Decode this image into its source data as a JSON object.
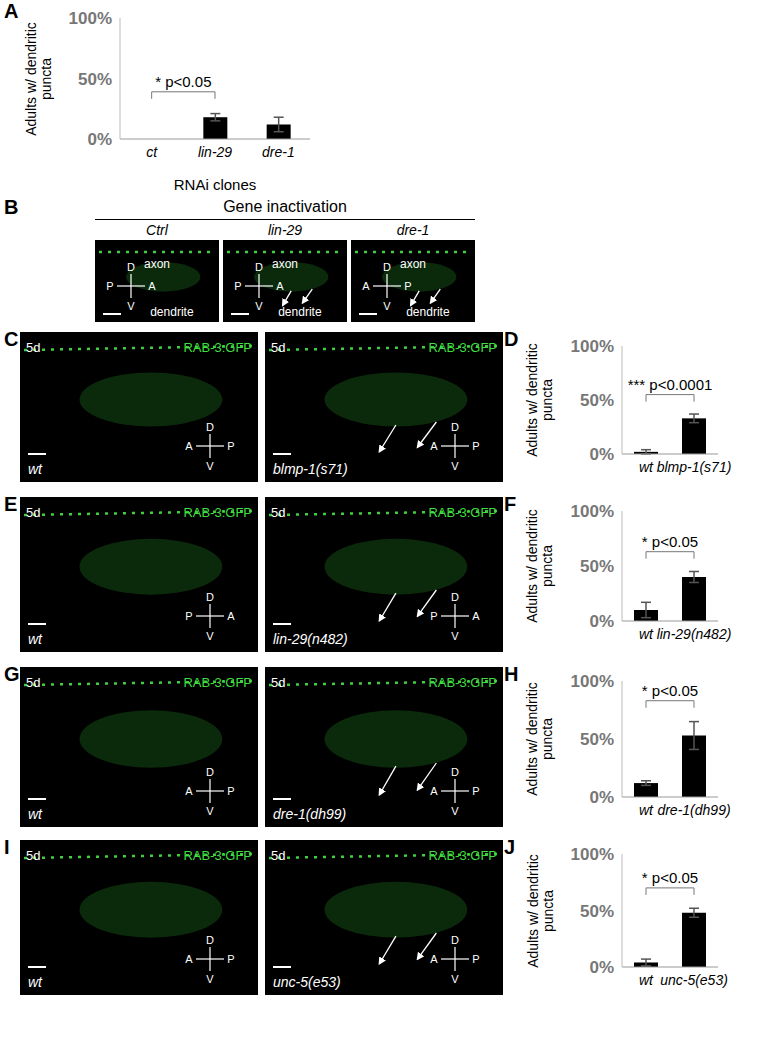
{
  "chart_data": [
    {
      "panel": "A",
      "type": "bar",
      "y_label": "Adults w/ dendritic puncta",
      "x_label": "RNAi clones",
      "categories": [
        "ct",
        "lin-29",
        "dre-1"
      ],
      "values": [
        0,
        18,
        12
      ],
      "errors": [
        0,
        3,
        6
      ],
      "color": "#000000",
      "ylim": [
        0,
        100
      ],
      "yticks": [
        {
          "value": 0,
          "label": "0%"
        },
        {
          "value": 50,
          "label": "50%"
        },
        {
          "value": 100,
          "label": "100%"
        }
      ],
      "annotations": [
        {
          "text": "* p<0.05",
          "between": [
            "ct",
            "lin-29"
          ]
        }
      ]
    },
    {
      "panel": "D",
      "type": "bar",
      "y_label": "Adults w/ dendritic puncta",
      "categories": [
        "wt",
        "blmp-1(s71)"
      ],
      "values": [
        2,
        33
      ],
      "errors": [
        2,
        4
      ],
      "color": "#000000",
      "ylim": [
        0,
        100
      ],
      "yticks": [
        {
          "value": 0,
          "label": "0%"
        },
        {
          "value": 50,
          "label": "50%"
        },
        {
          "value": 100,
          "label": "100%"
        }
      ],
      "annotations": [
        {
          "text": "*** p<0.0001",
          "between": [
            "wt",
            "blmp-1(s71)"
          ]
        }
      ]
    },
    {
      "panel": "F",
      "type": "bar",
      "y_label": "Adults w/ dendritic puncta",
      "categories": [
        "wt",
        "lin-29(n482)"
      ],
      "values": [
        10,
        40
      ],
      "errors": [
        7,
        5
      ],
      "color": "#000000",
      "ylim": [
        0,
        100
      ],
      "yticks": [
        {
          "value": 0,
          "label": "0%"
        },
        {
          "value": 50,
          "label": "50%"
        },
        {
          "value": 100,
          "label": "100%"
        }
      ],
      "annotations": [
        {
          "text": "* p<0.05",
          "between": [
            "wt",
            "lin-29(n482)"
          ]
        }
      ]
    },
    {
      "panel": "H",
      "type": "bar",
      "y_label": "Adults w/ dendritic puncta",
      "categories": [
        "wt",
        "dre-1(dh99)"
      ],
      "values": [
        12,
        53
      ],
      "errors": [
        2,
        12
      ],
      "color": "#000000",
      "ylim": [
        0,
        100
      ],
      "yticks": [
        {
          "value": 0,
          "label": "0%"
        },
        {
          "value": 50,
          "label": "50%"
        },
        {
          "value": 100,
          "label": "100%"
        }
      ],
      "annotations": [
        {
          "text": "* p<0.05",
          "between": [
            "wt",
            "dre-1(dh99)"
          ]
        }
      ]
    },
    {
      "panel": "J",
      "type": "bar",
      "y_label": "Adults w/ dendritic puncta",
      "categories": [
        "wt",
        "unc-5(e53)"
      ],
      "values": [
        4,
        48
      ],
      "errors": [
        3,
        4
      ],
      "color": "#000000",
      "ylim": [
        0,
        100
      ],
      "yticks": [
        {
          "value": 0,
          "label": "0%"
        },
        {
          "value": 50,
          "label": "50%"
        },
        {
          "value": 100,
          "label": "100%"
        }
      ],
      "annotations": [
        {
          "text": "* p<0.05",
          "between": [
            "wt",
            "unc-5(e53)"
          ]
        }
      ]
    }
  ],
  "image_panels": [
    {
      "panel": "B",
      "title": "Gene inactivation",
      "images": [
        {
          "label": "Ctrl",
          "upper_text": "axon",
          "lower_text": "dendrite",
          "compass": {
            "top": "D",
            "bottom": "V",
            "left": "P",
            "right": "A"
          }
        },
        {
          "label": "lin-29",
          "upper_text": "axon",
          "lower_text": "dendrite",
          "compass": {
            "top": "D",
            "bottom": "V",
            "left": "P",
            "right": "A"
          }
        },
        {
          "label": "dre-1",
          "upper_text": "axon",
          "lower_text": "dendrite",
          "compass": {
            "top": "D",
            "bottom": "V",
            "left": "A",
            "right": "P"
          }
        }
      ]
    },
    {
      "panel": "C",
      "images": [
        {
          "age": "5d",
          "reporter": "RAB-3:GFP",
          "genotype": "wt",
          "compass": {
            "top": "D",
            "bottom": "V",
            "left": "A",
            "right": "P"
          }
        },
        {
          "age": "5d",
          "reporter": "RAB-3:GFP",
          "genotype": "blmp-1(s71)",
          "compass": {
            "top": "D",
            "bottom": "V",
            "left": "A",
            "right": "P"
          }
        }
      ]
    },
    {
      "panel": "E",
      "images": [
        {
          "age": "5d",
          "reporter": "RAB-3:GFP",
          "genotype": "wt",
          "compass": {
            "top": "D",
            "bottom": "V",
            "left": "P",
            "right": "A"
          }
        },
        {
          "age": "5d",
          "reporter": "RAB-3:GFP",
          "genotype": "lin-29(n482)",
          "compass": {
            "top": "D",
            "bottom": "V",
            "left": "P",
            "right": "A"
          }
        }
      ]
    },
    {
      "panel": "G",
      "images": [
        {
          "age": "5d",
          "reporter": "RAB-3:GFP",
          "genotype": "wt",
          "compass": {
            "top": "D",
            "bottom": "V",
            "left": "A",
            "right": "P"
          }
        },
        {
          "age": "5d",
          "reporter": "RAB-3:GFP",
          "genotype": "dre-1(dh99)",
          "compass": {
            "top": "D",
            "bottom": "V",
            "left": "A",
            "right": "P"
          }
        }
      ]
    },
    {
      "panel": "I",
      "images": [
        {
          "age": "5d",
          "reporter": "RAB-3:GFP",
          "genotype": "wt",
          "compass": {
            "top": "D",
            "bottom": "V",
            "left": "A",
            "right": "P"
          }
        },
        {
          "age": "5d",
          "reporter": "RAB-3:GFP",
          "genotype": "unc-5(e53)",
          "compass": {
            "top": "D",
            "bottom": "V",
            "left": "A",
            "right": "P"
          }
        }
      ]
    }
  ]
}
